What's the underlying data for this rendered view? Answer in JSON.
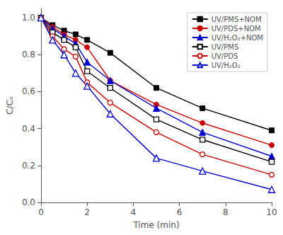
{
  "chart_data": {
    "type": "line",
    "x": [
      0,
      0.5,
      1,
      1.5,
      2,
      3,
      5,
      7,
      10
    ],
    "series": [
      {
        "name": "UV/PMS+NOM",
        "color": "#000000",
        "marker": "square",
        "line_style": "solid",
        "values": [
          1.0,
          0.96,
          0.93,
          0.91,
          0.88,
          0.81,
          0.62,
          0.51,
          0.39
        ]
      },
      {
        "name": "UV/PDS+NOM",
        "color": "#cc0000",
        "marker": "circle",
        "line_style": "solid",
        "values": [
          1.0,
          0.95,
          0.91,
          0.88,
          0.84,
          0.66,
          0.53,
          0.43,
          0.31
        ]
      },
      {
        "name": "UV/H₂O₂+NOM",
        "color": "#0000cc",
        "marker": "triangle",
        "line_style": "solid",
        "values": [
          1.0,
          0.94,
          0.9,
          0.86,
          0.76,
          0.66,
          0.51,
          0.38,
          0.25
        ]
      },
      {
        "name": "UV/PMS",
        "color": "#000000",
        "marker": "open_square",
        "line_style": "solid",
        "values": [
          1.0,
          0.92,
          0.88,
          0.84,
          0.71,
          0.62,
          0.45,
          0.34,
          0.22
        ]
      },
      {
        "name": "UV/PDS",
        "color": "#cc0000",
        "marker": "open_circle",
        "line_style": "solid",
        "values": [
          1.0,
          0.9,
          0.83,
          0.79,
          0.65,
          0.54,
          0.38,
          0.26,
          0.15
        ]
      },
      {
        "name": "UV/H₂O₂",
        "color": "#0000cc",
        "marker": "open_triangle",
        "line_style": "solid",
        "values": [
          1.0,
          0.88,
          0.8,
          0.7,
          0.63,
          0.48,
          0.24,
          0.17,
          0.07
        ]
      }
    ],
    "xlabel": "Time (min)",
    "ylabel": "C/Cₒ",
    "xlim": [
      0,
      10
    ],
    "ylim": [
      0.0,
      1.05
    ],
    "xticks": [
      0,
      2,
      4,
      6,
      8,
      10
    ],
    "yticks": [
      {
        "value": 0.0,
        "label": "0.0"
      },
      0.2,
      0.4,
      0.6,
      0.8,
      {
        "value": 1.0,
        "label": "1.0"
      }
    ],
    "grid": false,
    "legend": "upper right"
  }
}
